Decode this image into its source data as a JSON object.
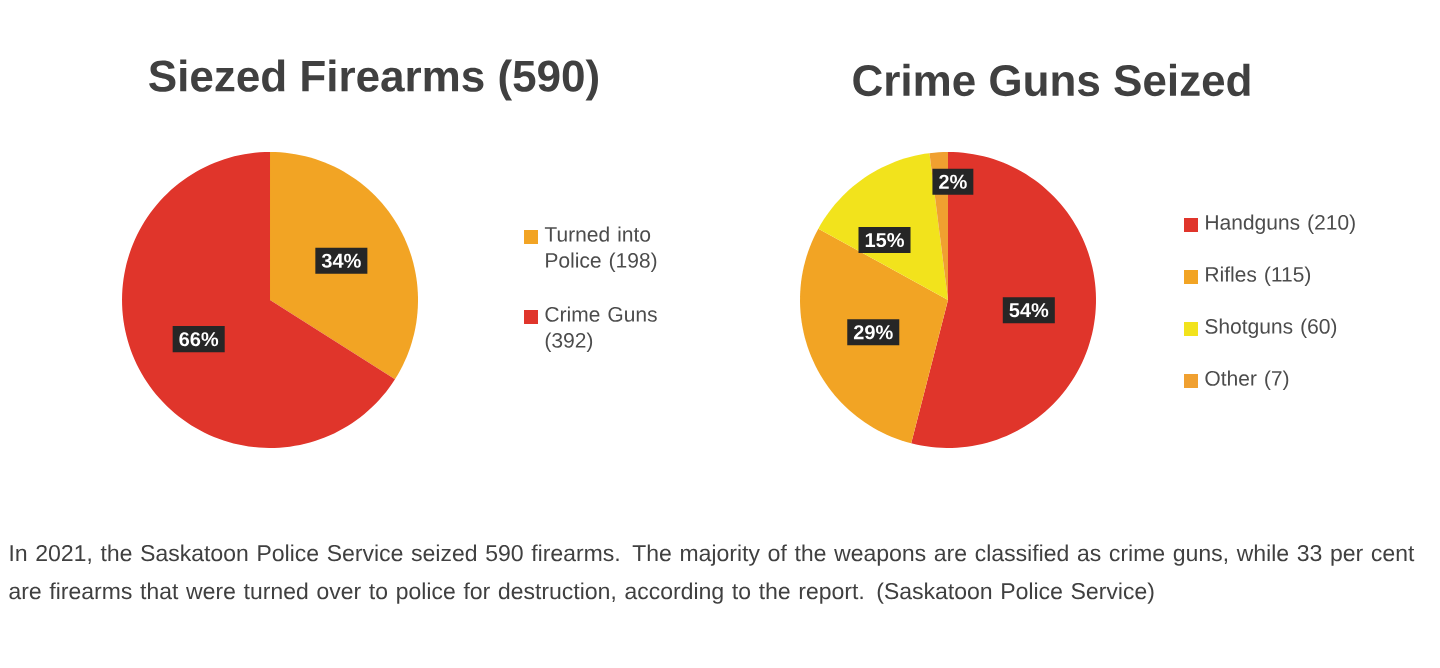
{
  "chart_data": [
    {
      "type": "pie",
      "title": "Siezed Firearms (590)",
      "categories": [
        "Turned into Police (198)",
        "Crime Guns (392)"
      ],
      "values": [
        34,
        66
      ],
      "colors": [
        "#f2a424",
        "#e0352b"
      ],
      "value_labels": [
        "34%",
        "66%"
      ],
      "legend": "right",
      "annotations": [
        "In 2021, the Saskatoon Police Service seized 590 firearms. The majority of the weapons are classified as crime guns, while 33 per cent are firearms that were turned over to police for destruction, according to the report. (Saskatoon Police Service)"
      ]
    },
    {
      "type": "pie",
      "title": "Crime Guns Seized",
      "categories": [
        "Handguns (210)",
        "Rifles (115)",
        "Shotguns (60)",
        "Other (7)"
      ],
      "values": [
        54,
        29,
        15,
        2
      ],
      "colors": [
        "#e0352b",
        "#f2a424",
        "#f2e31c",
        "#f0a030"
      ],
      "value_labels": [
        "54%",
        "29%",
        "15%",
        "2%"
      ],
      "legend": "right"
    }
  ]
}
